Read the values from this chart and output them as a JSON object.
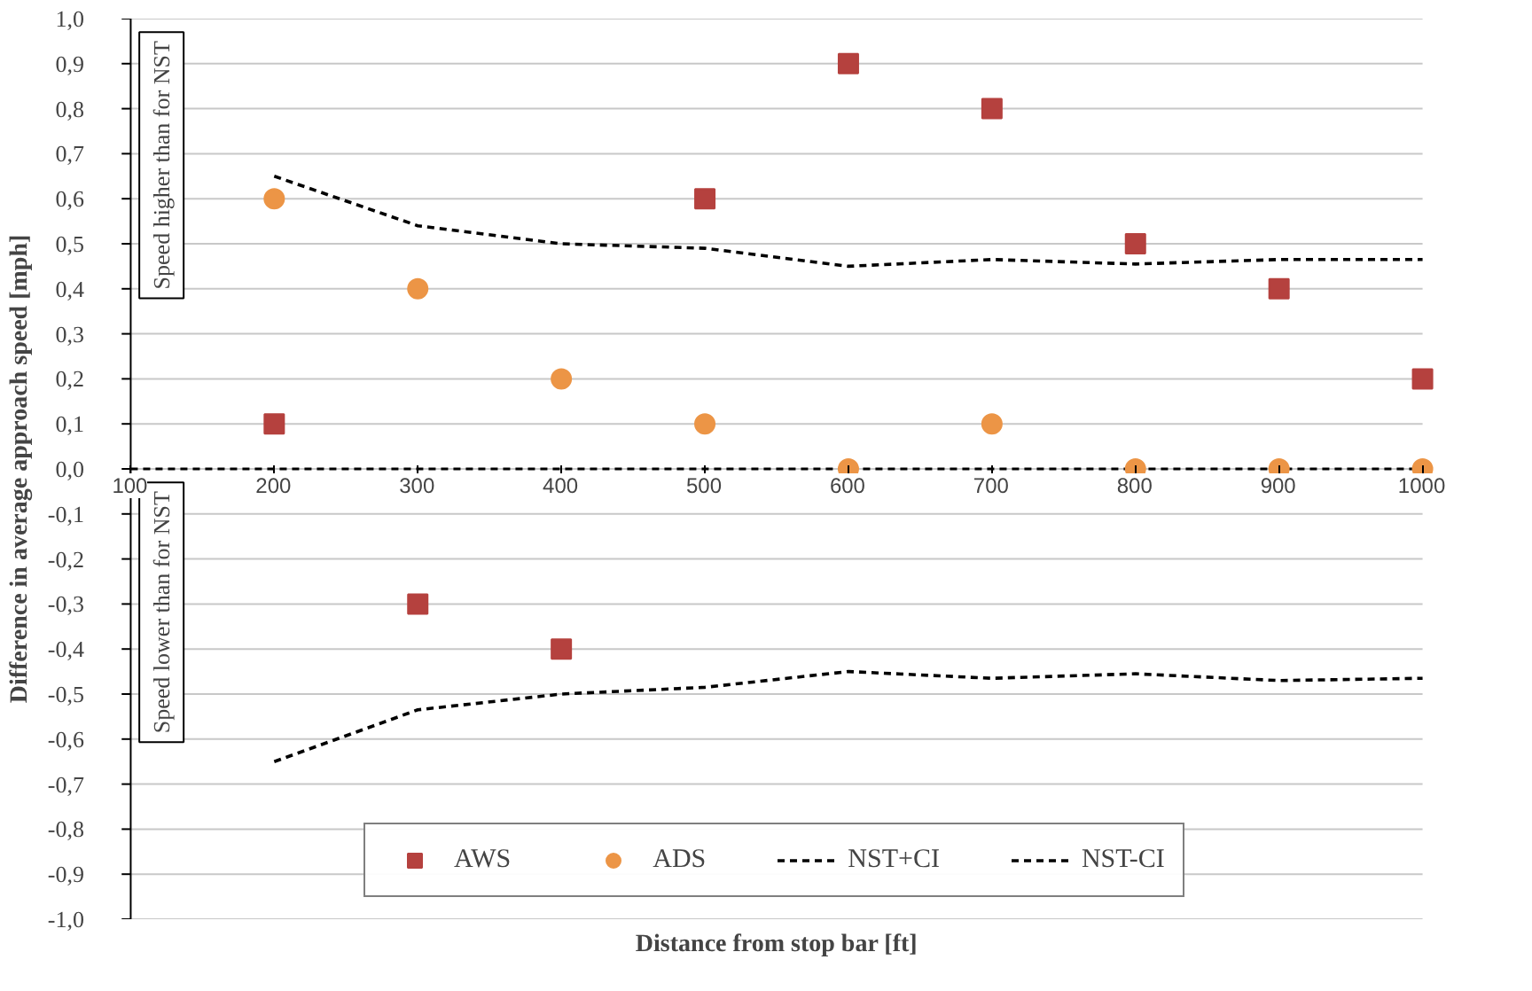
{
  "chart_data": {
    "type": "scatter",
    "xlabel": "Distance from stop bar [ft]",
    "ylabel": "Difference in average approach speed [mph]",
    "x": [
      200,
      300,
      400,
      500,
      600,
      700,
      800,
      900,
      1000
    ],
    "series": [
      {
        "name": "AWS",
        "type": "scatter",
        "marker": "square",
        "color": "#b5413e",
        "values": [
          0.1,
          -0.3,
          -0.4,
          0.6,
          0.9,
          0.8,
          0.5,
          0.4,
          0.2
        ]
      },
      {
        "name": "ADS",
        "type": "scatter",
        "marker": "circle",
        "color": "#ec9546",
        "values": [
          0.6,
          0.4,
          0.2,
          0.1,
          0.0,
          0.1,
          0.0,
          0.0,
          0.0
        ]
      },
      {
        "name": "NST+CI",
        "type": "line",
        "line_style": "dashed",
        "color": "#000000",
        "values": [
          0.65,
          0.54,
          0.5,
          0.49,
          0.45,
          0.465,
          0.455,
          0.465,
          0.465
        ]
      },
      {
        "name": "NST-CI",
        "type": "line",
        "line_style": "dashed",
        "color": "#000000",
        "values": [
          -0.65,
          -0.535,
          -0.5,
          -0.485,
          -0.45,
          -0.465,
          -0.455,
          -0.47,
          -0.465
        ]
      }
    ],
    "xlim": [
      100,
      1000
    ],
    "xticks": [
      100,
      200,
      300,
      400,
      500,
      600,
      700,
      800,
      900,
      1000
    ],
    "ylim": [
      -1.0,
      1.0
    ],
    "yticks": [
      {
        "value": -1.0,
        "label": "-1,0"
      },
      {
        "value": -0.9,
        "label": "-0,9"
      },
      {
        "value": -0.8,
        "label": "-0,8"
      },
      {
        "value": -0.7,
        "label": "-0,7"
      },
      {
        "value": -0.6,
        "label": "-0,6"
      },
      {
        "value": -0.5,
        "label": "-0,5"
      },
      {
        "value": -0.4,
        "label": "-0,4"
      },
      {
        "value": -0.3,
        "label": "-0,3"
      },
      {
        "value": -0.2,
        "label": "-0,2"
      },
      {
        "value": -0.1,
        "label": "-0,1"
      },
      {
        "value": 0.0,
        "label": "0,0"
      },
      {
        "value": 0.1,
        "label": "0,1"
      },
      {
        "value": 0.2,
        "label": "0,2"
      },
      {
        "value": 0.3,
        "label": "0,3"
      },
      {
        "value": 0.4,
        "label": "0,4"
      },
      {
        "value": 0.5,
        "label": "0,5"
      },
      {
        "value": 0.6,
        "label": "0,6"
      },
      {
        "value": 0.7,
        "label": "0,7"
      },
      {
        "value": 0.8,
        "label": "0,8"
      },
      {
        "value": 0.9,
        "label": "0,9"
      },
      {
        "value": 1.0,
        "label": "1,0"
      }
    ],
    "ref_lines": [
      {
        "axis": "y",
        "value": 0.0,
        "line_style": "dashed",
        "color": "#000000"
      }
    ],
    "annotations": [
      "Speed higher than for NST",
      "Speed lower than for NST"
    ],
    "grid": "y",
    "legend": "bottom"
  }
}
